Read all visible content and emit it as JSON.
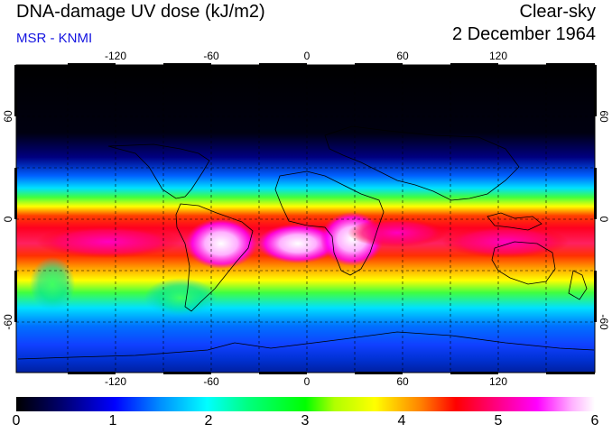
{
  "header": {
    "title": "DNA-damage UV dose (kJ/m2)",
    "subtitle": "MSR - KNMI",
    "product": "Clear-sky",
    "date": "2 December 1964"
  },
  "map": {
    "lon_ticks": [
      "-120",
      "-60",
      "0",
      "60",
      "120"
    ],
    "lat_ticks": [
      "60",
      "0",
      "-60"
    ],
    "lat_ticks_right": [
      "60",
      "0",
      "-60"
    ]
  },
  "colorbar": {
    "labels": [
      "0",
      "1",
      "2",
      "3",
      "4",
      "5",
      "6"
    ],
    "colors": [
      "#000000",
      "#000070",
      "#0000ff",
      "#0090ff",
      "#00ffff",
      "#00ff80",
      "#00ff00",
      "#b0ff00",
      "#ffff00",
      "#ff8000",
      "#ff0000",
      "#ff0080",
      "#ff00ff",
      "#ffb0ff",
      "#ffffff"
    ]
  }
}
